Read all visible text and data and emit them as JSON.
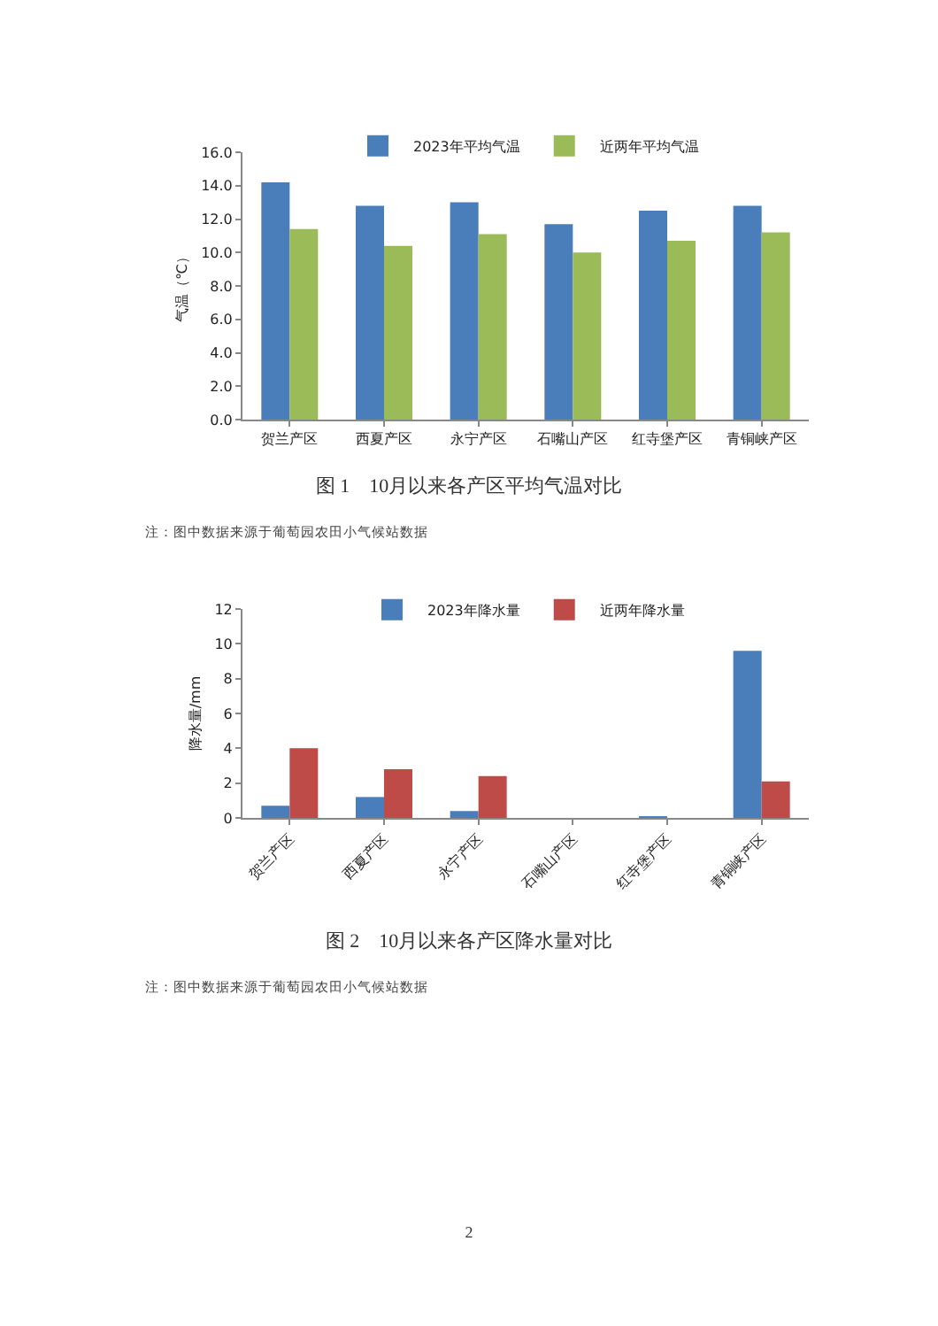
{
  "chart_data": [
    {
      "type": "bar",
      "title": "图 1　10月以来各产区平均气温对比",
      "ylabel": "气温（℃）",
      "categories": [
        "贺兰产区",
        "西夏产区",
        "永宁产区",
        "石嘴山产区",
        "红寺堡产区",
        "青铜峡产区"
      ],
      "series": [
        {
          "name": "2023年平均气温",
          "color": "#4a7ebb",
          "values": [
            14.2,
            12.8,
            13.0,
            11.7,
            12.5,
            12.8
          ]
        },
        {
          "name": "近两年平均气温",
          "color": "#9bbb59",
          "values": [
            11.4,
            10.4,
            11.1,
            10.0,
            10.7,
            11.2
          ]
        }
      ],
      "ylim": [
        0,
        16
      ],
      "yticks": [
        {
          "value": 0,
          "label": "0.0"
        },
        {
          "value": 2,
          "label": "2.0"
        },
        {
          "value": 4,
          "label": "4.0"
        },
        {
          "value": 6,
          "label": "6.0"
        },
        {
          "value": 8,
          "label": "8.0"
        },
        {
          "value": 10,
          "label": "10.0"
        },
        {
          "value": 12,
          "label": "12.0"
        },
        {
          "value": 14,
          "label": "14.0"
        },
        {
          "value": 16,
          "label": "16.0"
        }
      ],
      "grid": false,
      "legend": "top",
      "annotations": [
        "注：图中数据来源于葡萄园农田小气候站数据"
      ]
    },
    {
      "type": "bar",
      "title": "图 2　10月以来各产区降水量对比",
      "ylabel": "降水量/mm",
      "categories": [
        "贺兰产区",
        "西夏产区",
        "永宁产区",
        "石嘴山产区",
        "红寺堡产区",
        "青铜峡产区"
      ],
      "series": [
        {
          "name": "2023年降水量",
          "color": "#4a7ebb",
          "values": [
            0.7,
            1.2,
            0.4,
            0,
            0.1,
            9.6
          ]
        },
        {
          "name": "近两年降水量",
          "color": "#be4b48",
          "values": [
            4.0,
            2.8,
            2.4,
            0,
            0,
            2.1
          ]
        }
      ],
      "ylim": [
        0,
        12
      ],
      "yticks": [
        0,
        2,
        4,
        6,
        8,
        10,
        12
      ],
      "grid": false,
      "legend": "top",
      "annotations": [
        "注：图中数据来源于葡萄园农田小气候站数据",
        "2"
      ]
    }
  ]
}
